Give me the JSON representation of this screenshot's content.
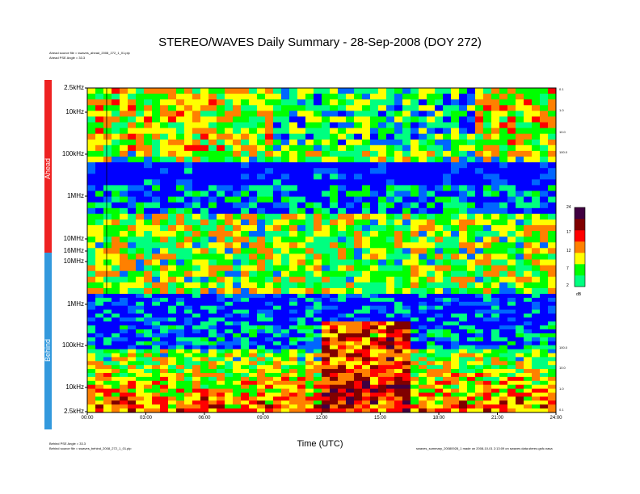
{
  "title": "STEREO/WAVES Daily Summary - 28-Sep-2008 (DOY 272)",
  "notes": {
    "ahead_source": "Ahead source file = swaves_ahead_2008_272_1_01.plp",
    "ahead_pse": "Ahead PSE Angle = 33.3",
    "behind_pse": "Behind PSE Angle = 33.3",
    "behind_source": "Behind source file = swaves_behind_2008_272_1_01.plp",
    "footer_right": "swaves_summary_20080928_1 made on 2008-10-01 2:13:09 on swaves data.stereo.gsfc.nasa"
  },
  "panels": {
    "ahead": "Ahead",
    "behind": "Behind"
  },
  "colors": {
    "ahead_bar": "#ee2222",
    "behind_bar": "#3399dd"
  },
  "chart_data": {
    "type": "heatmap",
    "xlabel": "Time (UTC)",
    "x_ticks": [
      "00:00",
      "03:00",
      "06:00",
      "09:00",
      "12:00",
      "15:00",
      "18:00",
      "21:00",
      "24:00"
    ],
    "y_ticks_ahead": [
      "2.5kHz",
      "10kHz",
      "100kHz",
      "1MHz",
      "10MHz",
      "16MHz"
    ],
    "y_ticks_behind": [
      "10MHz",
      "1MHz",
      "100kHz",
      "10kHz",
      "2.5kHz"
    ],
    "right_ticks_ahead": [
      "0.1",
      "1.0",
      "10.0",
      "100.0"
    ],
    "right_ticks_behind": [
      "100.0",
      "10.0",
      "1.0",
      "0.1"
    ],
    "colorbar": {
      "label": "dB",
      "ticks": [
        "24",
        "17",
        "12",
        "7",
        "2"
      ],
      "range": [
        2,
        24
      ]
    },
    "colormap": [
      "#00ff80",
      "#00ff00",
      "#ffff00",
      "#ff8000",
      "#ff0000",
      "#800000",
      "#400040"
    ],
    "features": [
      {
        "panel": "behind",
        "description_time": "12:00-16:15",
        "freq": "2.5kHz-300kHz",
        "level": "high"
      }
    ]
  }
}
